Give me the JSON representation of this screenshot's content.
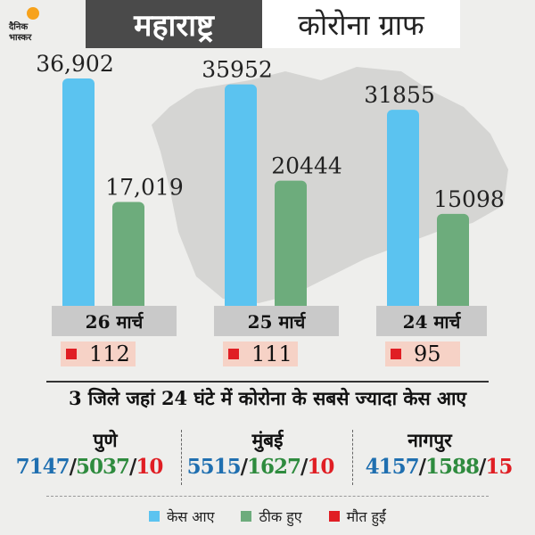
{
  "brand": {
    "line1": "दैनिक",
    "line2": "भास्कर",
    "accent": "#f7a21b"
  },
  "header": {
    "title_left": "महाराष्ट्र",
    "title_right": "कोरोना ग्राफ"
  },
  "chart_data": {
    "type": "bar",
    "categories": [
      "26 मार्च",
      "25 मार्च",
      "24 मार्च"
    ],
    "series": [
      {
        "name": "केस आए",
        "values": [
          36902,
          35952,
          31855
        ],
        "labels": [
          "36,902",
          "35952",
          "31855"
        ],
        "color": "#5bc3f0"
      },
      {
        "name": "ठीक हुए",
        "values": [
          17019,
          20444,
          15098
        ],
        "labels": [
          "17,019",
          "20444",
          "15098"
        ],
        "color": "#6dac7c"
      }
    ],
    "deaths": {
      "name": "मौत हुईं",
      "values": [
        112,
        111,
        95
      ],
      "labels": [
        "112",
        "111",
        "95"
      ],
      "color": "#e01e24"
    },
    "ylim": [
      0,
      40000
    ]
  },
  "districts": {
    "title": "3 जिले जहां 24 घंटे में कोरोना के सबसे ज्यादा केस आए",
    "items": [
      {
        "name": "पुणे",
        "cases": "7147",
        "recovered": "5037",
        "deaths": "10"
      },
      {
        "name": "मुंबई",
        "cases": "5515",
        "recovered": "1627",
        "deaths": "10"
      },
      {
        "name": "नागपुर",
        "cases": "4157",
        "recovered": "1588",
        "deaths": "15"
      }
    ],
    "sep": "/"
  },
  "legend": {
    "cases": "केस आए",
    "recovered": "ठीक हुए",
    "deaths": "मौत हुईं"
  },
  "colors": {
    "cases": "#5bc3f0",
    "recovered": "#6dac7c",
    "deaths": "#e01e24",
    "header_dark": "#4a4a4a",
    "date_bg": "#c9c9c9",
    "death_bg": "#f6d2c6"
  }
}
